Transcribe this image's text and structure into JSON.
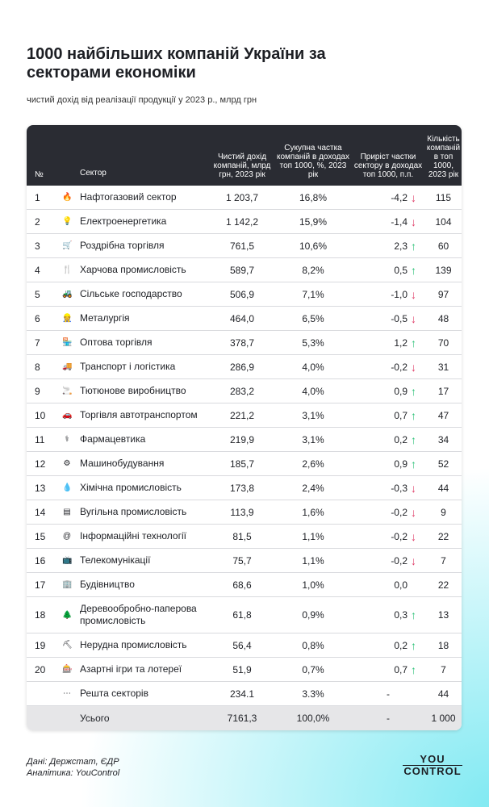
{
  "title": "1000 найбільших компаній України за секторами економіки",
  "subtitle": "чистий дохід від реалізації продукції у 2023 р., млрд грн",
  "headers": {
    "num": "№",
    "sector": "Сектор",
    "revenue": "Чистий дохід компаній, млрд грн, 2023 рік",
    "share": "Сукупна частка компаній в доходах топ 1000, %, 2023 рік",
    "growth": "Приріст частки сектору в доходах топ 1000, п.п.",
    "count": "Кількість компаній в топ 1000, 2023 рік"
  },
  "colors": {
    "down": "#e0406a",
    "up": "#2fc27a",
    "header_bg": "#2a2c33"
  },
  "rows": [
    {
      "n": "1",
      "icon": "flame-icon",
      "glyph": "🔥",
      "sector": "Нафтогазовий сектор",
      "revenue": "1 203,7",
      "share": "16,8%",
      "growth": "-4,2",
      "dir": "down",
      "count": "115"
    },
    {
      "n": "2",
      "icon": "lightbulb-icon",
      "glyph": "💡",
      "sector": "Електроенергетика",
      "revenue": "1 142,2",
      "share": "15,9%",
      "growth": "-1,4",
      "dir": "down",
      "count": "104"
    },
    {
      "n": "3",
      "icon": "cart-icon",
      "glyph": "🛒",
      "sector": "Роздрібна торгівля",
      "revenue": "761,5",
      "share": "10,6%",
      "growth": "2,3",
      "dir": "up",
      "count": "60"
    },
    {
      "n": "4",
      "icon": "cutlery-icon",
      "glyph": "🍴",
      "sector": "Харчова промисловість",
      "revenue": "589,7",
      "share": "8,2%",
      "growth": "0,5",
      "dir": "up",
      "count": "139"
    },
    {
      "n": "5",
      "icon": "tractor-icon",
      "glyph": "🚜",
      "sector": "Сільське господарство",
      "revenue": "506,9",
      "share": "7,1%",
      "growth": "-1,0",
      "dir": "down",
      "count": "97"
    },
    {
      "n": "6",
      "icon": "worker-icon",
      "glyph": "👷",
      "sector": "Металургія",
      "revenue": "464,0",
      "share": "6,5%",
      "growth": "-0,5",
      "dir": "down",
      "count": "48"
    },
    {
      "n": "7",
      "icon": "store-icon",
      "glyph": "🏪",
      "sector": "Оптова торгівля",
      "revenue": "378,7",
      "share": "5,3%",
      "growth": "1,2",
      "dir": "up",
      "count": "70"
    },
    {
      "n": "8",
      "icon": "truck-icon",
      "glyph": "🚚",
      "sector": "Транспорт і логістика",
      "revenue": "286,9",
      "share": "4,0%",
      "growth": "-0,2",
      "dir": "down",
      "count": "31"
    },
    {
      "n": "9",
      "icon": "cigarette-icon",
      "glyph": "🚬",
      "sector": "Тютюнове виробництво",
      "revenue": "283,2",
      "share": "4,0%",
      "growth": "0,9",
      "dir": "up",
      "count": "17"
    },
    {
      "n": "10",
      "icon": "car-icon",
      "glyph": "🚗",
      "sector": "Торгівля автотранспортом",
      "revenue": "221,2",
      "share": "3,1%",
      "growth": "0,7",
      "dir": "up",
      "count": "47"
    },
    {
      "n": "11",
      "icon": "pharmacy-icon",
      "glyph": "⚕",
      "sector": "Фармацевтика",
      "revenue": "219,9",
      "share": "3,1%",
      "growth": "0,2",
      "dir": "up",
      "count": "34"
    },
    {
      "n": "12",
      "icon": "gear-icon",
      "glyph": "⚙",
      "sector": "Машинобудування",
      "revenue": "185,7",
      "share": "2,6%",
      "growth": "0,9",
      "dir": "up",
      "count": "52"
    },
    {
      "n": "13",
      "icon": "drop-icon",
      "glyph": "💧",
      "sector": "Хімічна промисловість",
      "revenue": "173,8",
      "share": "2,4%",
      "growth": "-0,3",
      "dir": "down",
      "count": "44"
    },
    {
      "n": "14",
      "icon": "coal-icon",
      "glyph": "▤",
      "sector": "Вугільна промисловість",
      "revenue": "113,9",
      "share": "1,6%",
      "growth": "-0,2",
      "dir": "down",
      "count": "9"
    },
    {
      "n": "15",
      "icon": "at-icon",
      "glyph": "@",
      "sector": "Інформаційні технології",
      "revenue": "81,5",
      "share": "1,1%",
      "growth": "-0,2",
      "dir": "down",
      "count": "22"
    },
    {
      "n": "16",
      "icon": "tv-icon",
      "glyph": "📺",
      "sector": "Телекомунікації",
      "revenue": "75,7",
      "share": "1,1%",
      "growth": "-0,2",
      "dir": "down",
      "count": "7"
    },
    {
      "n": "17",
      "icon": "building-icon",
      "glyph": "🏢",
      "sector": "Будівництво",
      "revenue": "68,6",
      "share": "1,0%",
      "growth": "0,0",
      "dir": "",
      "count": "22"
    },
    {
      "n": "18",
      "icon": "tree-icon",
      "glyph": "🌲",
      "sector": "Деревообробно-паперова промисловість",
      "revenue": "61,8",
      "share": "0,9%",
      "growth": "0,3",
      "dir": "up",
      "count": "13"
    },
    {
      "n": "19",
      "icon": "pickaxe-icon",
      "glyph": "⛏",
      "sector": "Нерудна промисловість",
      "revenue": "56,4",
      "share": "0,8%",
      "growth": "0,2",
      "dir": "up",
      "count": "18"
    },
    {
      "n": "20",
      "icon": "slot-machine-icon",
      "glyph": "🎰",
      "sector": "Азартні ігри та лотереї",
      "revenue": "51,9",
      "share": "0,7%",
      "growth": "0,7",
      "dir": "up",
      "count": "7"
    },
    {
      "n": "",
      "icon": "more-icon",
      "glyph": "⋯",
      "sector": "Решта секторів",
      "revenue": "234.1",
      "share": "3.3%",
      "growth": "-",
      "dir": "",
      "count": "44"
    }
  ],
  "total": {
    "sector": "Усього",
    "revenue": "7161,3",
    "share": "100,0%",
    "growth": "-",
    "count": "1 000"
  },
  "footer": {
    "source": "Дані: Держстат, ЄДР",
    "analytics": "Аналітика: YouControl"
  },
  "logo": {
    "line1": "YOU",
    "line2": "CONTROL"
  }
}
